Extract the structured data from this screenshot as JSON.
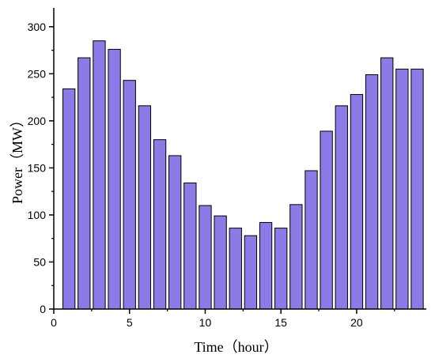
{
  "chart_data": {
    "type": "bar",
    "xlabel": "Time（hour）",
    "ylabel": "Power（MW）",
    "x": [
      1,
      2,
      3,
      4,
      5,
      6,
      7,
      8,
      9,
      10,
      11,
      12,
      13,
      14,
      15,
      16,
      17,
      18,
      19,
      20,
      21,
      22,
      23,
      24
    ],
    "values": [
      234,
      267,
      285,
      276,
      243,
      216,
      180,
      163,
      134,
      110,
      99,
      86,
      78,
      92,
      86,
      111,
      147,
      189,
      216,
      228,
      249,
      267,
      255,
      255
    ],
    "xlim": [
      0,
      24.6
    ],
    "ylim": [
      0,
      320
    ],
    "xticks": [
      0,
      5,
      10,
      15,
      20
    ],
    "yticks": [
      0,
      50,
      100,
      150,
      200,
      250,
      300
    ],
    "grid": false,
    "bar_color": "#8c7be6",
    "edge_color": "#000000"
  }
}
